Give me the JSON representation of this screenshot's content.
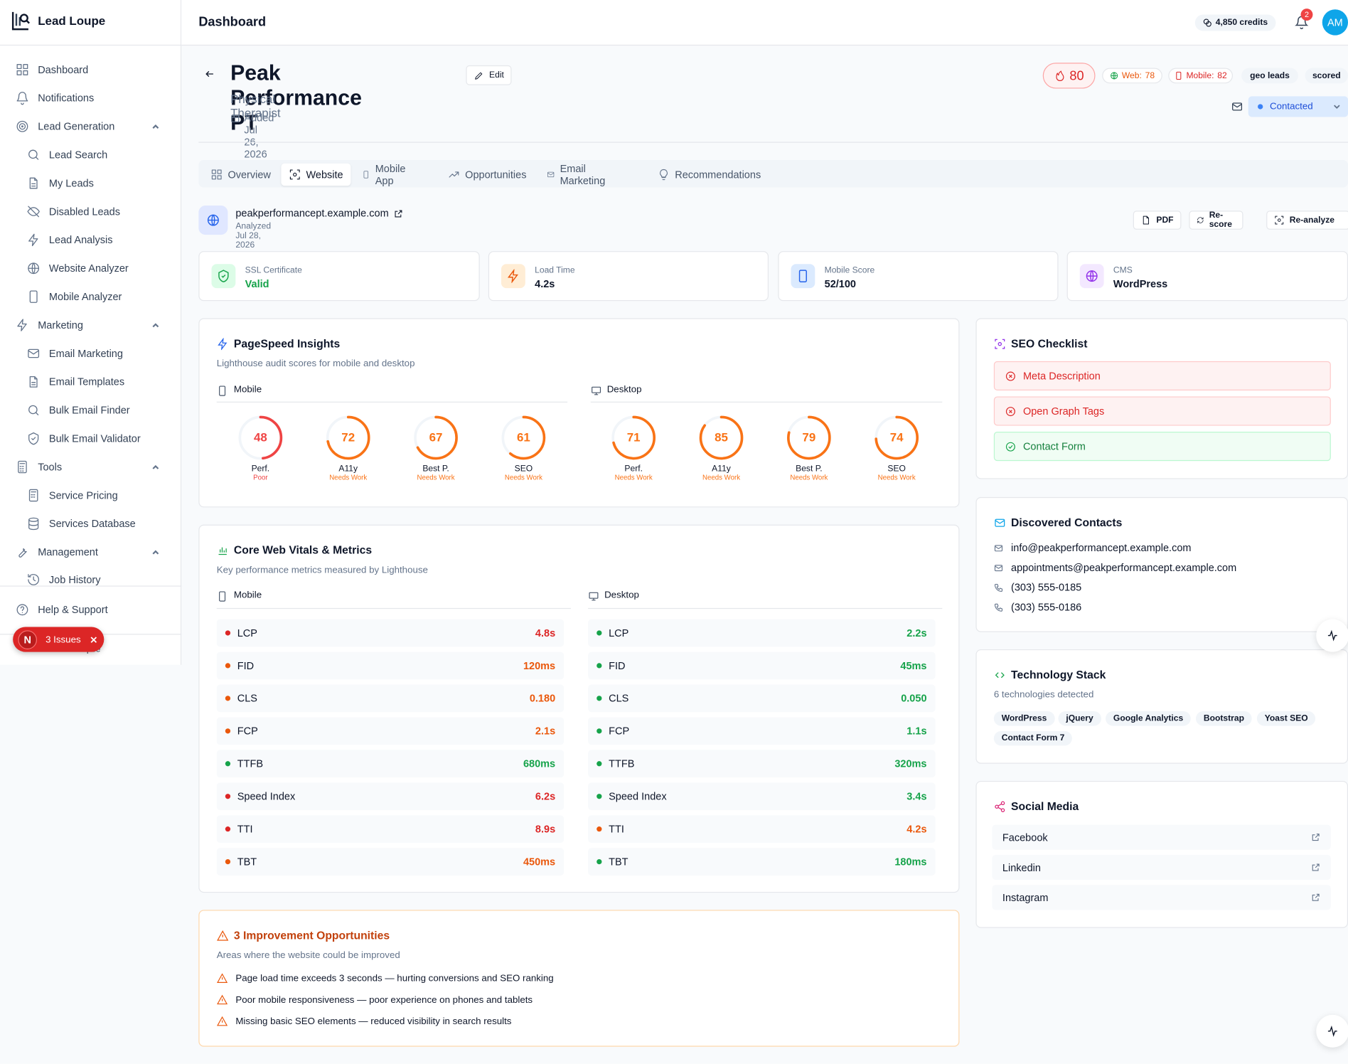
{
  "app": {
    "name": "Lead Loupe"
  },
  "sidebar": {
    "items": [
      {
        "label": "Dashboard"
      },
      {
        "label": "Notifications"
      },
      {
        "label": "Lead Generation"
      },
      {
        "label": "Lead Search"
      },
      {
        "label": "My Leads"
      },
      {
        "label": "Disabled Leads"
      },
      {
        "label": "Lead Analysis"
      },
      {
        "label": "Website Analyzer"
      },
      {
        "label": "Mobile Analyzer"
      },
      {
        "label": "Marketing"
      },
      {
        "label": "Email Marketing"
      },
      {
        "label": "Email Templates"
      },
      {
        "label": "Bulk Email Finder"
      },
      {
        "label": "Bulk Email Validator"
      },
      {
        "label": "Tools"
      },
      {
        "label": "Service Pricing"
      },
      {
        "label": "Services Database"
      },
      {
        "label": "Management"
      },
      {
        "label": "Job History"
      }
    ],
    "help": "Help & Support",
    "collapse": "Collapse",
    "issues_badge": {
      "letter": "N",
      "label": "3 Issues"
    }
  },
  "topbar": {
    "title": "Dashboard",
    "credits": "4,850 credits",
    "notif_count": "2",
    "avatar_initials": "AM"
  },
  "lead": {
    "name": "Peak Performance PT",
    "edit_label": "Edit",
    "category": "Physical Therapist",
    "added": "Added Jul 26, 2026",
    "score": "80",
    "web_label": "Web:",
    "web_score": "78",
    "mobile_label": "Mobile:",
    "mobile_score": "82",
    "tags": [
      "geo leads",
      "scored"
    ],
    "status": "Contacted"
  },
  "tabs": [
    "Overview",
    "Website",
    "Mobile App",
    "Opportunities",
    "Email Marketing",
    "Recommendations"
  ],
  "website": {
    "url": "peakperformancept.example.com",
    "analyzed": "Analyzed Jul 28, 2026",
    "actions": {
      "pdf": "PDF",
      "rescore": "Re-score",
      "reanalyze": "Re-analyze"
    }
  },
  "stats": [
    {
      "label": "SSL Certificate",
      "value": "Valid",
      "color": "#16a34a"
    },
    {
      "label": "Load Time",
      "value": "4.2s",
      "color": "#0f172a"
    },
    {
      "label": "Mobile Score",
      "value": "52/100",
      "color": "#0f172a"
    },
    {
      "label": "CMS",
      "value": "WordPress",
      "color": "#0f172a"
    }
  ],
  "pagespeed": {
    "title": "PageSpeed Insights",
    "subtitle": "Lighthouse audit scores for mobile and desktop",
    "mobile_label": "Mobile",
    "desktop_label": "Desktop",
    "mobile": [
      {
        "label": "Perf.",
        "score": 48,
        "status": "Poor",
        "color": "#ef4444"
      },
      {
        "label": "A11y",
        "score": 72,
        "status": "Needs Work",
        "color": "#f97316"
      },
      {
        "label": "Best P.",
        "score": 67,
        "status": "Needs Work",
        "color": "#f97316"
      },
      {
        "label": "SEO",
        "score": 61,
        "status": "Needs Work",
        "color": "#f97316"
      }
    ],
    "desktop": [
      {
        "label": "Perf.",
        "score": 71,
        "status": "Needs Work",
        "color": "#f97316"
      },
      {
        "label": "A11y",
        "score": 85,
        "status": "Needs Work",
        "color": "#f97316"
      },
      {
        "label": "Best P.",
        "score": 79,
        "status": "Needs Work",
        "color": "#f97316"
      },
      {
        "label": "SEO",
        "score": 74,
        "status": "Needs Work",
        "color": "#f97316"
      }
    ]
  },
  "cwv": {
    "title": "Core Web Vitals & Metrics",
    "subtitle": "Key performance metrics measured by Lighthouse",
    "mobile_label": "Mobile",
    "desktop_label": "Desktop",
    "mobile": [
      {
        "name": "LCP",
        "value": "4.8s",
        "color": "#dc2626"
      },
      {
        "name": "FID",
        "value": "120ms",
        "color": "#ea580c"
      },
      {
        "name": "CLS",
        "value": "0.180",
        "color": "#ea580c"
      },
      {
        "name": "FCP",
        "value": "2.1s",
        "color": "#ea580c"
      },
      {
        "name": "TTFB",
        "value": "680ms",
        "color": "#16a34a"
      },
      {
        "name": "Speed Index",
        "value": "6.2s",
        "color": "#dc2626"
      },
      {
        "name": "TTI",
        "value": "8.9s",
        "color": "#dc2626"
      },
      {
        "name": "TBT",
        "value": "450ms",
        "color": "#ea580c"
      }
    ],
    "desktop": [
      {
        "name": "LCP",
        "value": "2.2s",
        "color": "#16a34a"
      },
      {
        "name": "FID",
        "value": "45ms",
        "color": "#16a34a"
      },
      {
        "name": "CLS",
        "value": "0.050",
        "color": "#16a34a"
      },
      {
        "name": "FCP",
        "value": "1.1s",
        "color": "#16a34a"
      },
      {
        "name": "TTFB",
        "value": "320ms",
        "color": "#16a34a"
      },
      {
        "name": "Speed Index",
        "value": "3.4s",
        "color": "#16a34a"
      },
      {
        "name": "TTI",
        "value": "4.2s",
        "color": "#ea580c"
      },
      {
        "name": "TBT",
        "value": "180ms",
        "color": "#16a34a"
      }
    ]
  },
  "opportunities": {
    "title": "3 Improvement Opportunities",
    "subtitle": "Areas where the website could be improved",
    "items": [
      "Page load time exceeds 3 seconds — hurting conversions and SEO ranking",
      "Poor mobile responsiveness — poor experience on phones and tablets",
      "Missing basic SEO elements — reduced visibility in search results"
    ]
  },
  "seo_checklist": {
    "title": "SEO Checklist",
    "items": [
      {
        "label": "Meta Description",
        "ok": false
      },
      {
        "label": "Open Graph Tags",
        "ok": false
      },
      {
        "label": "Contact Form",
        "ok": true
      }
    ]
  },
  "contacts": {
    "title": "Discovered Contacts",
    "emails": [
      "info@peakperformancept.example.com",
      "appointments@peakperformancept.example.com"
    ],
    "phones": [
      "(303) 555-0185",
      "(303) 555-0186"
    ]
  },
  "tech_stack": {
    "title": "Technology Stack",
    "subtitle": "6 technologies detected",
    "items": [
      "WordPress",
      "jQuery",
      "Google Analytics",
      "Bootstrap",
      "Yoast SEO",
      "Contact Form 7"
    ]
  },
  "social": {
    "title": "Social Media",
    "items": [
      "Facebook",
      "Linkedin",
      "Instagram"
    ]
  }
}
